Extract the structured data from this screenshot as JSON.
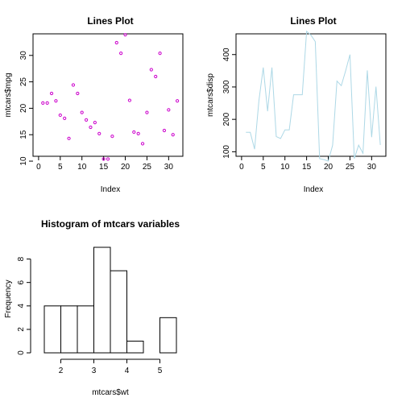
{
  "chart_data": [
    {
      "type": "scatter",
      "title": "Lines Plot",
      "xlabel": "Index",
      "ylabel": "mtcars$mpg",
      "xlim": [
        0,
        32
      ],
      "ylim": [
        10,
        35
      ],
      "x_ticks": [
        "0",
        "5",
        "10",
        "15",
        "20",
        "25",
        "30"
      ],
      "y_ticks": [
        "10",
        "15",
        "20",
        "25",
        "30"
      ],
      "point_color": "#cc00cc",
      "x": [
        1,
        2,
        3,
        4,
        5,
        6,
        7,
        8,
        9,
        10,
        11,
        12,
        13,
        14,
        15,
        16,
        17,
        18,
        19,
        20,
        21,
        22,
        23,
        24,
        25,
        26,
        27,
        28,
        29,
        30,
        31,
        32
      ],
      "y": [
        21.0,
        21.0,
        22.8,
        21.4,
        18.7,
        18.1,
        14.3,
        24.4,
        22.8,
        19.2,
        17.8,
        16.4,
        17.3,
        15.2,
        10.4,
        10.4,
        14.7,
        32.4,
        30.4,
        33.9,
        21.5,
        15.5,
        15.2,
        13.3,
        19.2,
        27.3,
        26.0,
        30.4,
        15.8,
        19.7,
        15.0,
        21.4
      ]
    },
    {
      "type": "line",
      "title": "Lines Plot",
      "xlabel": "Index",
      "ylabel": "mtcars$disp",
      "xlim": [
        0,
        32
      ],
      "ylim": [
        70,
        480
      ],
      "x_ticks": [
        "0",
        "5",
        "10",
        "15",
        "20",
        "25",
        "30"
      ],
      "y_ticks": [
        "100",
        "200",
        "300",
        "400"
      ],
      "line_color": "#add8e6",
      "x": [
        1,
        2,
        3,
        4,
        5,
        6,
        7,
        8,
        9,
        10,
        11,
        12,
        13,
        14,
        15,
        16,
        17,
        18,
        19,
        20,
        21,
        22,
        23,
        24,
        25,
        26,
        27,
        28,
        29,
        30,
        31,
        32
      ],
      "y": [
        160,
        160,
        108,
        258,
        360,
        225,
        360,
        146.7,
        140.8,
        167.6,
        167.6,
        275.8,
        275.8,
        275.8,
        472,
        460,
        440,
        78.7,
        75.7,
        71.1,
        120.1,
        318,
        304,
        350,
        400,
        79,
        120.3,
        95.1,
        351,
        145,
        301,
        121
      ]
    },
    {
      "type": "bar",
      "title": "Histogram of mtcars variables",
      "xlabel": "mtcars$wt",
      "ylabel": "Frequency",
      "bins": [
        [
          1.5,
          2.0
        ],
        [
          2.0,
          2.5
        ],
        [
          2.5,
          3.0
        ],
        [
          3.0,
          3.5
        ],
        [
          3.5,
          4.0
        ],
        [
          4.0,
          4.5
        ],
        [
          4.5,
          5.0
        ],
        [
          5.0,
          5.5
        ]
      ],
      "values": [
        4,
        4,
        4,
        9,
        7,
        1,
        0,
        3
      ],
      "xlim": [
        1.5,
        5.5
      ],
      "ylim": [
        0,
        9
      ],
      "x_ticks": [
        "2",
        "3",
        "4",
        "5"
      ],
      "y_ticks": [
        "0",
        "2",
        "4",
        "6",
        "8"
      ]
    }
  ]
}
